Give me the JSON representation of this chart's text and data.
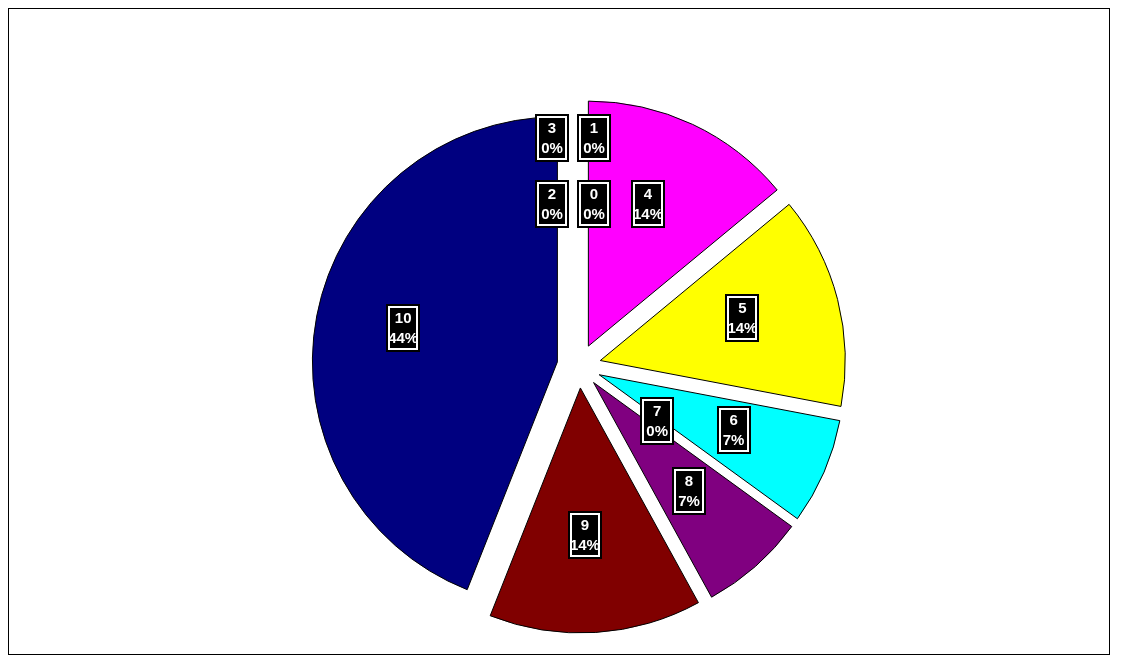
{
  "chart_data": {
    "type": "pie",
    "categories": [
      "0",
      "1",
      "2",
      "3",
      "4",
      "5",
      "6",
      "7",
      "8",
      "9",
      "10"
    ],
    "values": [
      0,
      0,
      0,
      0,
      14,
      14,
      7,
      0,
      7,
      14,
      44
    ],
    "value_labels": [
      "0%",
      "0%",
      "0%",
      "0%",
      "14%",
      "14%",
      "7%",
      "0%",
      "7%",
      "14%",
      "44%"
    ],
    "colors": [
      "#9999ff",
      "#993366",
      "#ffffcc",
      "#ccffff",
      "#ff00ff",
      "#ffff00",
      "#00ffff",
      "#0000ff",
      "#800080",
      "#800000",
      "#000080"
    ],
    "legend": false
  }
}
